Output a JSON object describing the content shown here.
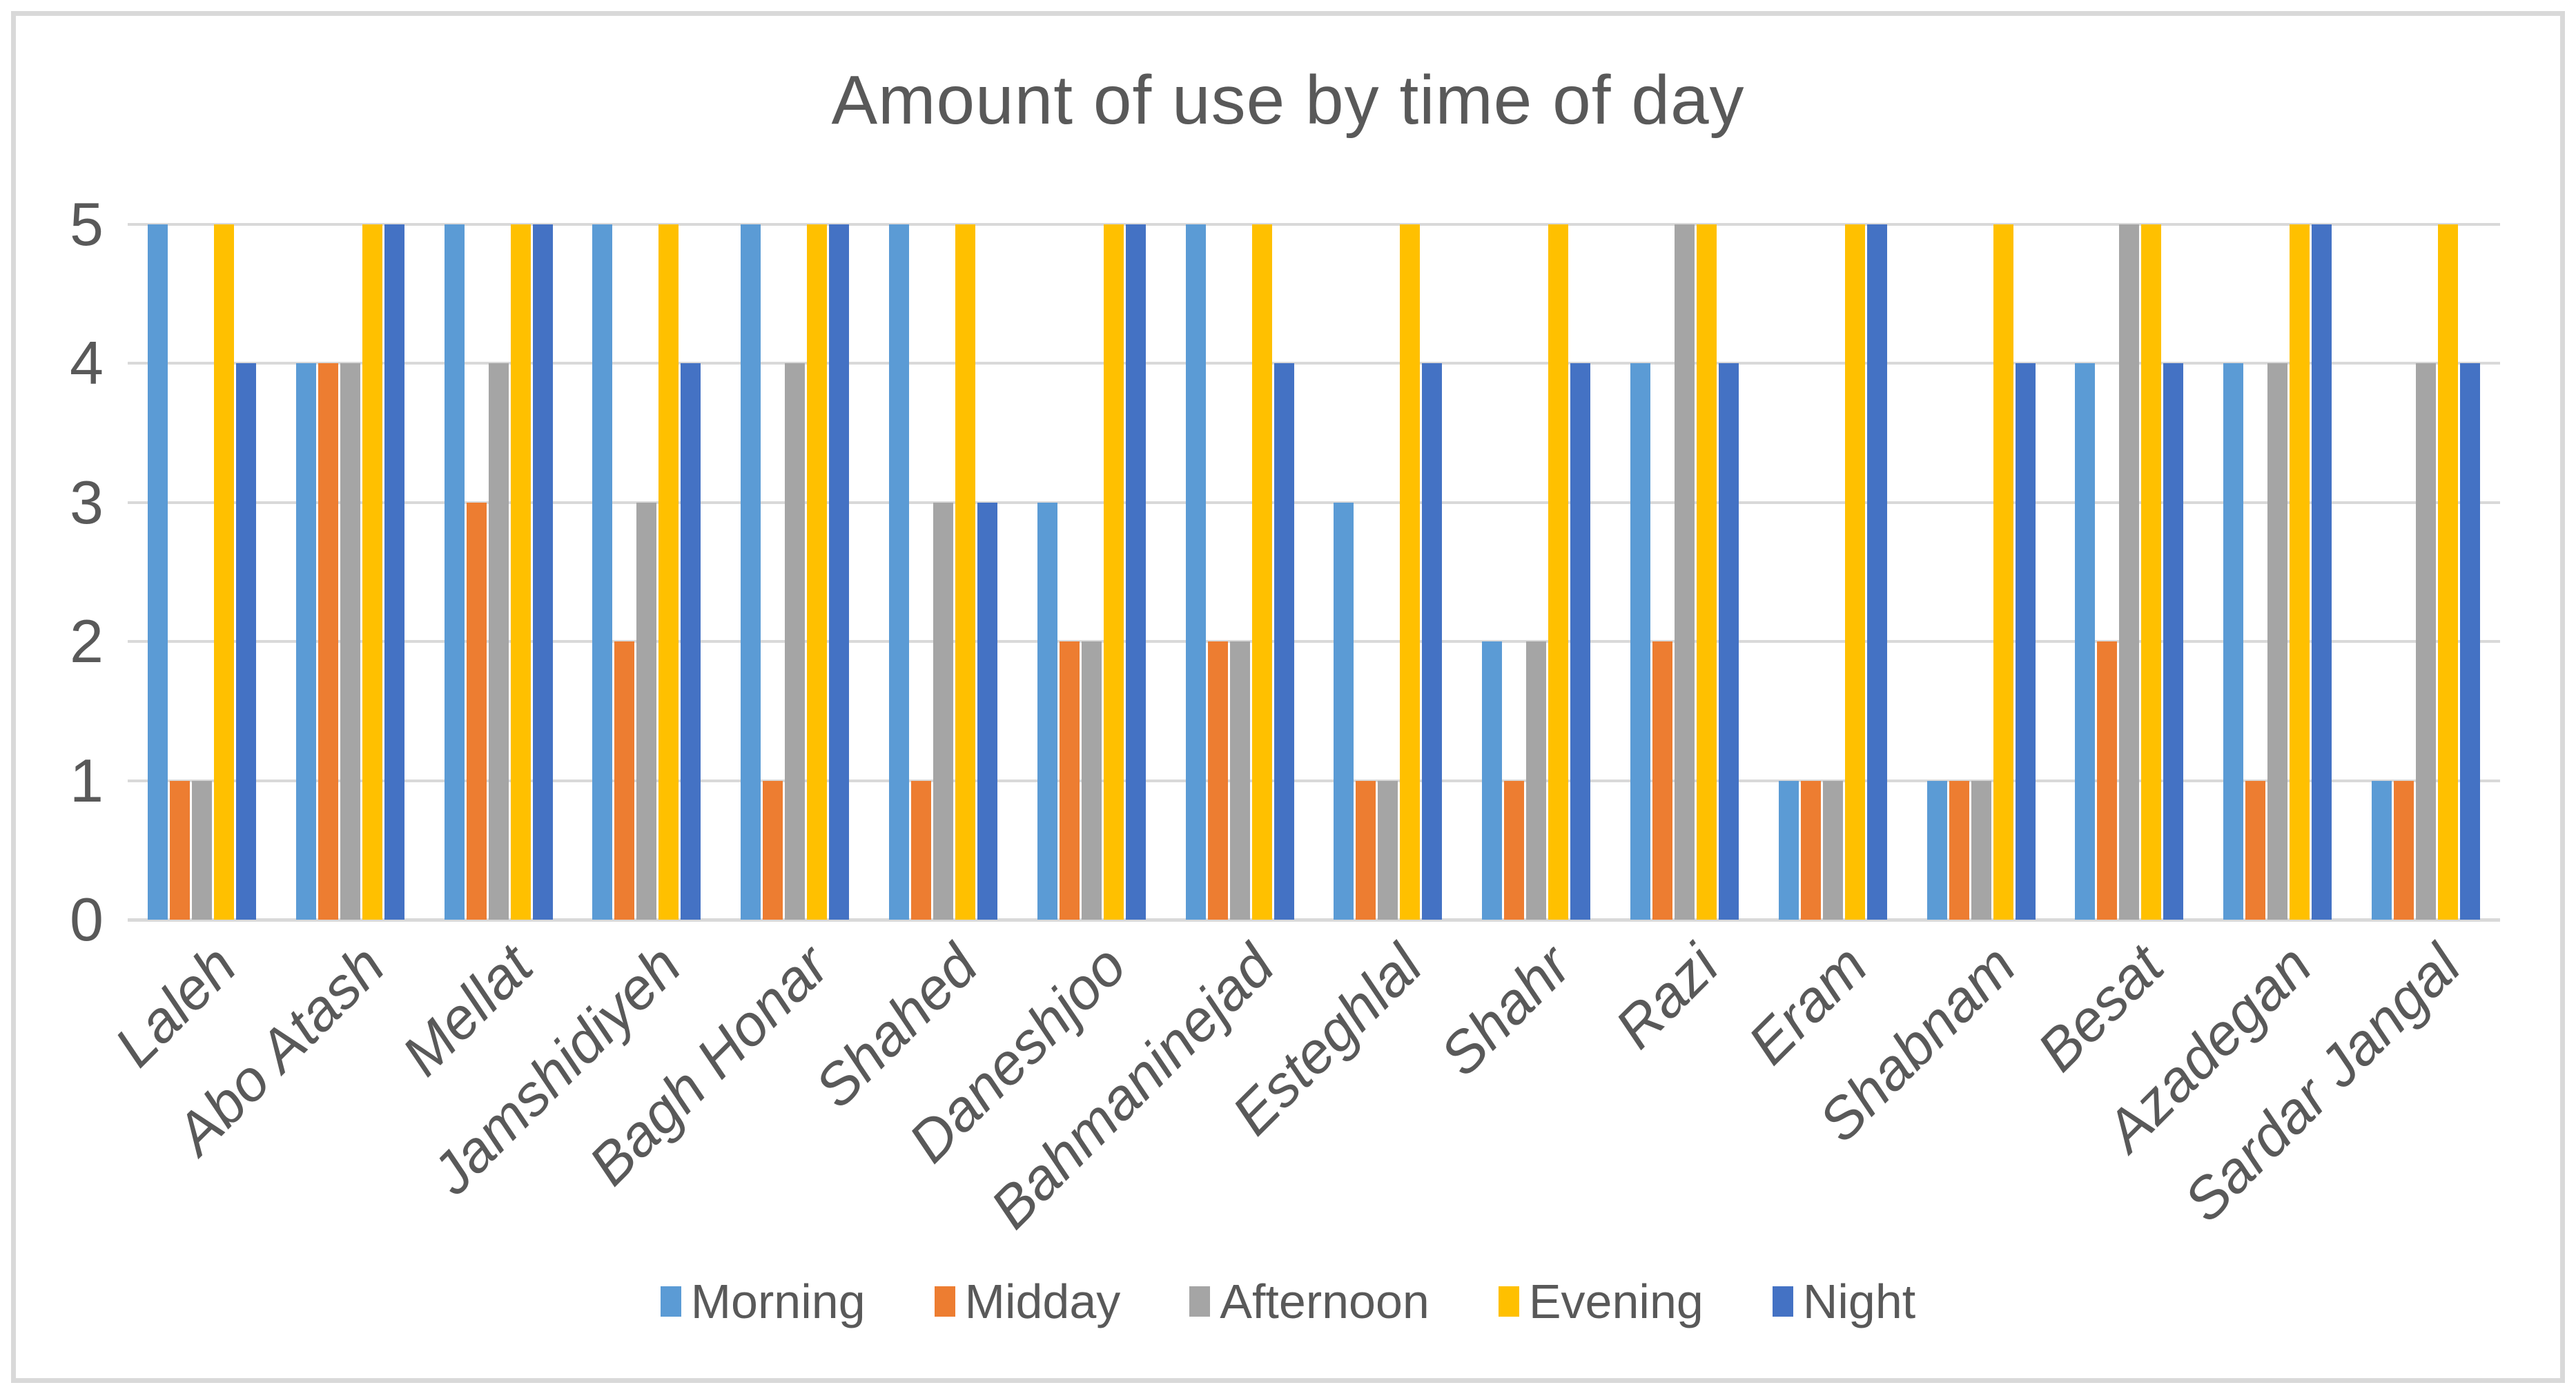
{
  "chart_data": {
    "type": "bar",
    "title": "Amount of use by time of day",
    "categories": [
      "Laleh",
      "Abo Atash",
      "Mellat",
      "Jamshidiyeh",
      "Bagh Honar",
      "Shahed",
      "Daneshjoo",
      "Bahmaninejad",
      "Esteghlal",
      "Shahr",
      "Razi",
      "Eram",
      "Shabnam",
      "Besat",
      "Azadegan",
      "Sardar Jangal"
    ],
    "series": [
      {
        "name": "Morning",
        "color": "#5B9BD5",
        "values": [
          5,
          4,
          5,
          5,
          5,
          5,
          3,
          5,
          3,
          2,
          4,
          1,
          1,
          4,
          4,
          1
        ]
      },
      {
        "name": "Midday",
        "color": "#ED7D31",
        "values": [
          1,
          4,
          3,
          2,
          1,
          1,
          2,
          2,
          1,
          1,
          2,
          1,
          1,
          2,
          1,
          1
        ]
      },
      {
        "name": "Afternoon",
        "color": "#A5A5A5",
        "values": [
          1,
          4,
          4,
          3,
          4,
          3,
          2,
          2,
          1,
          2,
          5,
          1,
          1,
          5,
          4,
          4
        ]
      },
      {
        "name": "Evening",
        "color": "#FFC000",
        "values": [
          5,
          5,
          5,
          5,
          5,
          5,
          5,
          5,
          5,
          5,
          5,
          5,
          5,
          5,
          5,
          5
        ]
      },
      {
        "name": "Night",
        "color": "#4472C4",
        "values": [
          4,
          5,
          5,
          4,
          5,
          3,
          5,
          4,
          4,
          4,
          4,
          5,
          4,
          4,
          5,
          4
        ]
      }
    ],
    "y_ticks": [
      "0",
      "1",
      "2",
      "3",
      "4",
      "5"
    ],
    "ylim": [
      0,
      5
    ],
    "grid": true,
    "legend_position": "bottom"
  },
  "style": {
    "grid_color": "#D9D9D9",
    "frame_color": "#D9D9D9",
    "text_color": "#595959"
  }
}
